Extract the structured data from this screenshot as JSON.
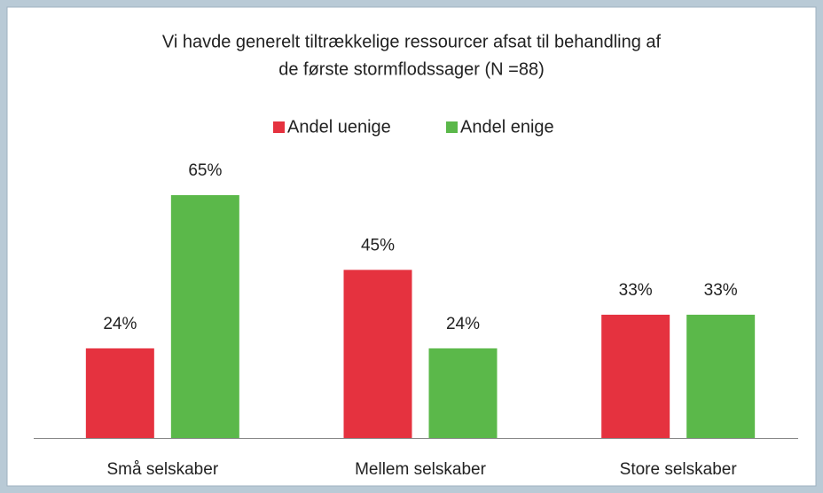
{
  "chart_data": {
    "type": "bar",
    "title": [
      "Vi havde generelt tiltrækkelige ressourcer afsat til behandling af",
      "de første stormflodssager (N =88)"
    ],
    "categories": [
      "Små selskaber",
      "Mellem selskaber",
      "Store selskaber"
    ],
    "series": [
      {
        "name": "Andel uenige",
        "color": "#e5323f",
        "values": [
          24,
          45,
          33
        ],
        "value_labels": [
          "24%",
          "45%",
          "33%"
        ]
      },
      {
        "name": "Andel enige",
        "color": "#5bb84a",
        "values": [
          65,
          24,
          33
        ],
        "value_labels": [
          "65%",
          "24%",
          "33%"
        ]
      }
    ],
    "ylim": [
      0,
      70
    ],
    "legend": "top",
    "grid": false
  }
}
